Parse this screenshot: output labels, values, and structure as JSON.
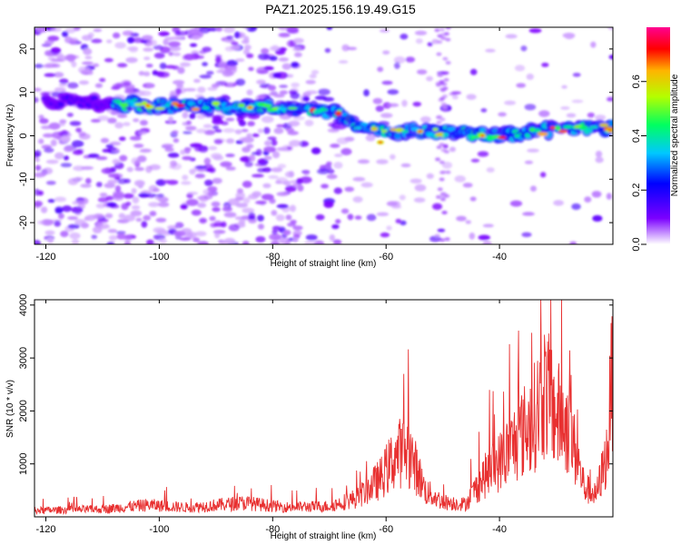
{
  "title": "PAZ1.2025.156.19.49.G15",
  "chart_data": [
    {
      "type": "heatmap",
      "xlabel": "Height of straight line (km)",
      "ylabel": "Frequency (Hz)",
      "xlim": [
        -122,
        -20
      ],
      "ylim": [
        -25,
        25
      ],
      "xticks": [
        -120,
        -100,
        -80,
        -60,
        -40
      ],
      "yticks": [
        -20,
        -10,
        0,
        10,
        20
      ],
      "colorbar": {
        "label": "Normalized spectral amplitude",
        "range": [
          0,
          0.8
        ],
        "ticks": [
          0.0,
          0.2,
          0.4,
          0.6
        ],
        "tick_labels": [
          "0.0",
          "0.2",
          "0.4",
          "0.6"
        ]
      },
      "ridge": {
        "description_points": [
          {
            "x": -120,
            "y": 8
          },
          {
            "x": -100,
            "y": 7
          },
          {
            "x": -80,
            "y": 6.5
          },
          {
            "x": -70,
            "y": 5.5
          },
          {
            "x": -62,
            "y": 1
          },
          {
            "x": -50,
            "y": 1
          },
          {
            "x": -40,
            "y": 0
          },
          {
            "x": -30,
            "y": 1.5
          },
          {
            "x": -20,
            "y": 2
          }
        ]
      }
    },
    {
      "type": "line",
      "xlabel": "Height of straight line (km)",
      "ylabel": "SNR (10 * v/v)",
      "xlim": [
        -122,
        -20
      ],
      "ylim": [
        0,
        4100
      ],
      "xticks": [
        -120,
        -100,
        -80,
        -60,
        -40
      ],
      "yticks": [
        1000,
        2000,
        3000,
        4000
      ],
      "series": [
        {
          "color": "#e83030",
          "envelope": [
            {
              "x": -122,
              "y": 150
            },
            {
              "x": -110,
              "y": 180
            },
            {
              "x": -102,
              "y": 280
            },
            {
              "x": -95,
              "y": 220
            },
            {
              "x": -85,
              "y": 330
            },
            {
              "x": -78,
              "y": 230
            },
            {
              "x": -70,
              "y": 250
            },
            {
              "x": -65,
              "y": 450
            },
            {
              "x": -61,
              "y": 900
            },
            {
              "x": -58,
              "y": 1500
            },
            {
              "x": -56,
              "y": 1550
            },
            {
              "x": -53,
              "y": 600
            },
            {
              "x": -50,
              "y": 350
            },
            {
              "x": -46,
              "y": 300
            },
            {
              "x": -43,
              "y": 900
            },
            {
              "x": -40,
              "y": 1300
            },
            {
              "x": -37,
              "y": 1800
            },
            {
              "x": -34,
              "y": 2300
            },
            {
              "x": -32,
              "y": 3000
            },
            {
              "x": -30,
              "y": 2400
            },
            {
              "x": -28,
              "y": 2200
            },
            {
              "x": -25,
              "y": 700
            },
            {
              "x": -23,
              "y": 500
            },
            {
              "x": -21,
              "y": 1500
            },
            {
              "x": -20,
              "y": 3700
            }
          ]
        }
      ]
    }
  ]
}
